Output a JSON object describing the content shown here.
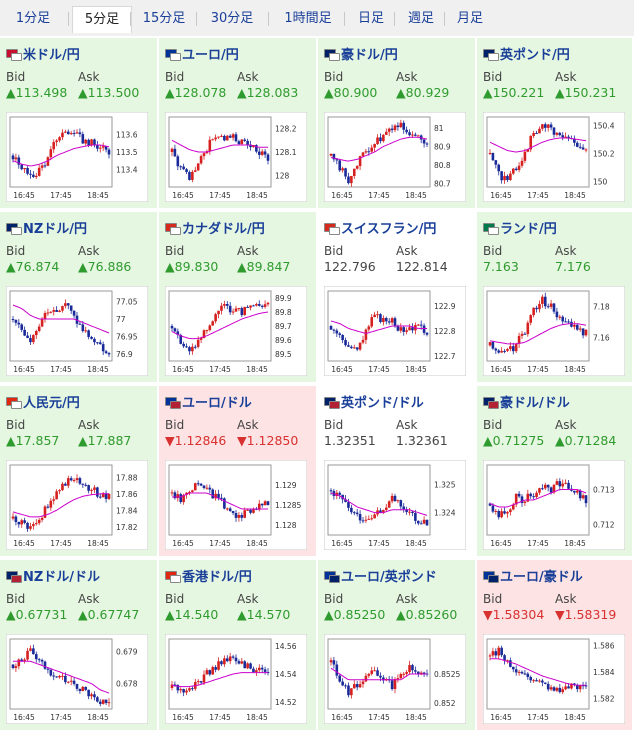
{
  "tabs": [
    {
      "label": "1分足",
      "active": false
    },
    {
      "label": "5分足",
      "active": true
    },
    {
      "label": "15分足",
      "active": false
    },
    {
      "label": "30分足",
      "active": false
    },
    {
      "label": "1時間足",
      "active": false
    },
    {
      "label": "日足",
      "active": false
    },
    {
      "label": "週足",
      "active": false
    },
    {
      "label": "月足",
      "active": false
    }
  ],
  "bid_label": "Bid",
  "ask_label": "Ask",
  "colors": {
    "up_bg": "#e6f7e1",
    "down_bg": "#fde3e3",
    "up_text": "#2f9b2f",
    "down_text": "#d93030",
    "candle_up": "#d62020",
    "candle_down": "#1a2a99",
    "ma": "#cc00cc"
  },
  "pairs": [
    {
      "name": "米ドル/円",
      "dir": "up",
      "bid": "▲113.498",
      "ask": "▲113.500",
      "flags": [
        "#c8102e",
        "#ffffff"
      ],
      "chart": {
        "ylim": [
          113.3,
          113.7
        ],
        "yticks": [
          "113.6",
          "113.5",
          "113.4"
        ],
        "ytickvals": [
          113.6,
          113.5,
          113.4
        ],
        "xticks": [
          "16:45",
          "17:45",
          "18:45"
        ],
        "trend": [
          113.48,
          113.42,
          113.35,
          113.4,
          113.46,
          113.58,
          113.62,
          113.6,
          113.57,
          113.55,
          113.52,
          113.5
        ],
        "ma": [
          113.45,
          113.43,
          113.42,
          113.43,
          113.45,
          113.48,
          113.5,
          113.52,
          113.53,
          113.54,
          113.54,
          113.53
        ]
      }
    },
    {
      "name": "ユーロ/円",
      "dir": "up",
      "bid": "▲128.078",
      "ask": "▲128.083",
      "flags": [
        "#003399",
        "#ffffff"
      ],
      "chart": {
        "ylim": [
          127.95,
          128.25
        ],
        "yticks": [
          "128.2",
          "128.1",
          "128"
        ],
        "ytickvals": [
          128.2,
          128.1,
          128.0
        ],
        "xticks": [
          "16:45",
          "17:45",
          "18:45"
        ],
        "trend": [
          128.1,
          128.03,
          127.98,
          128.05,
          128.12,
          128.17,
          128.15,
          128.16,
          128.14,
          128.12,
          128.1,
          128.08
        ],
        "ma": [
          128.15,
          128.13,
          128.11,
          128.1,
          128.1,
          128.11,
          128.12,
          128.13,
          128.13,
          128.13,
          128.12,
          128.12
        ]
      }
    },
    {
      "name": "豪ドル/円",
      "dir": "up",
      "bid": "▲80.900",
      "ask": "▲80.929",
      "flags": [
        "#012169",
        "#ffffff"
      ],
      "chart": {
        "ylim": [
          80.68,
          81.06
        ],
        "yticks": [
          "81",
          "80.9",
          "80.8",
          "80.7"
        ],
        "ytickvals": [
          81.0,
          80.9,
          80.8,
          80.7
        ],
        "xticks": [
          "16:45",
          "17:45",
          "18:45"
        ],
        "trend": [
          80.85,
          80.78,
          80.72,
          80.8,
          80.88,
          80.92,
          80.96,
          81.0,
          81.02,
          80.98,
          80.95,
          80.9
        ],
        "ma": [
          80.84,
          80.83,
          80.82,
          80.83,
          80.85,
          80.87,
          80.9,
          80.92,
          80.94,
          80.95,
          80.95,
          80.94
        ]
      }
    },
    {
      "name": "英ポンド/円",
      "dir": "up",
      "bid": "▲150.221",
      "ask": "▲150.231",
      "flags": [
        "#012169",
        "#ffffff"
      ],
      "chart": {
        "ylim": [
          149.96,
          150.46
        ],
        "yticks": [
          "150.4",
          "150.2",
          "150"
        ],
        "ytickvals": [
          150.4,
          150.2,
          150.0
        ],
        "xticks": [
          "16:45",
          "17:45",
          "18:45"
        ],
        "trend": [
          150.2,
          150.05,
          150.0,
          150.1,
          150.2,
          150.35,
          150.4,
          150.38,
          150.33,
          150.3,
          150.26,
          150.22
        ],
        "ma": [
          150.28,
          150.25,
          150.22,
          150.21,
          150.22,
          150.25,
          150.28,
          150.3,
          150.31,
          150.31,
          150.3,
          150.29
        ]
      }
    },
    {
      "name": "NZドル/円",
      "dir": "up",
      "bid": "▲76.874",
      "ask": "▲76.886",
      "flags": [
        "#012169",
        "#ffffff"
      ],
      "chart": {
        "ylim": [
          76.88,
          77.08
        ],
        "yticks": [
          "77.05",
          "77",
          "76.95",
          "76.9"
        ],
        "ytickvals": [
          77.05,
          77.0,
          76.95,
          76.9
        ],
        "xticks": [
          "16:45",
          "17:45",
          "18:45"
        ],
        "trend": [
          77.0,
          76.97,
          76.94,
          76.99,
          77.03,
          77.02,
          77.04,
          77.0,
          76.97,
          76.95,
          76.92,
          76.9
        ],
        "ma": [
          77.04,
          77.03,
          77.01,
          77.0,
          77.0,
          77.0,
          77.0,
          77.0,
          76.99,
          76.98,
          76.97,
          76.96
        ]
      }
    },
    {
      "name": "カナダドル/円",
      "dir": "up",
      "bid": "▲89.830",
      "ask": "▲89.847",
      "flags": [
        "#d52b1e",
        "#ffffff"
      ],
      "chart": {
        "ylim": [
          89.45,
          89.95
        ],
        "yticks": [
          "89.9",
          "89.8",
          "89.7",
          "89.6",
          "89.5"
        ],
        "ytickvals": [
          89.9,
          89.8,
          89.7,
          89.6,
          89.5
        ],
        "xticks": [
          "16:45",
          "17:45",
          "18:45"
        ],
        "trend": [
          89.7,
          89.6,
          89.5,
          89.58,
          89.68,
          89.78,
          89.84,
          89.82,
          89.8,
          89.83,
          89.85,
          89.88
        ],
        "ma": [
          89.66,
          89.63,
          89.61,
          89.61,
          89.63,
          89.66,
          89.69,
          89.72,
          89.75,
          89.77,
          89.79,
          89.8
        ]
      }
    },
    {
      "name": "スイスフラン/円",
      "dir": "flat",
      "bid": "122.796",
      "ask": "122.814",
      "flags": [
        "#d52b1e",
        "#ffffff"
      ],
      "chart": {
        "ylim": [
          122.68,
          122.96
        ],
        "yticks": [
          "122.9",
          "122.8",
          "122.7"
        ],
        "ytickvals": [
          122.9,
          122.8,
          122.7
        ],
        "xticks": [
          "16:45",
          "17:45",
          "18:45"
        ],
        "trend": [
          122.82,
          122.78,
          122.74,
          122.72,
          122.8,
          122.86,
          122.84,
          122.85,
          122.8,
          122.82,
          122.81,
          122.8
        ],
        "ma": [
          122.84,
          122.83,
          122.81,
          122.8,
          122.79,
          122.8,
          122.81,
          122.82,
          122.82,
          122.82,
          122.81,
          122.81
        ]
      }
    },
    {
      "name": "ランド/円",
      "dir": "up",
      "bid": "7.163",
      "ask": "7.176",
      "flags": [
        "#007a4d",
        "#ffffff"
      ],
      "chart": {
        "ylim": [
          7.145,
          7.19
        ],
        "yticks": [
          "7.18",
          "7.16"
        ],
        "ytickvals": [
          7.18,
          7.16
        ],
        "xticks": [
          "16:45",
          "17:45",
          "18:45"
        ],
        "trend": [
          7.155,
          7.152,
          7.15,
          7.156,
          7.165,
          7.178,
          7.184,
          7.18,
          7.172,
          7.168,
          7.165,
          7.163
        ],
        "ma": [
          7.158,
          7.157,
          7.156,
          7.156,
          7.157,
          7.16,
          7.163,
          7.166,
          7.168,
          7.169,
          7.169,
          7.168
        ]
      }
    },
    {
      "name": "人民元/円",
      "dir": "up",
      "bid": "▲17.857",
      "ask": "▲17.887",
      "flags": [
        "#de2910",
        "#ffffff"
      ],
      "chart": {
        "ylim": [
          17.81,
          17.895
        ],
        "yticks": [
          "17.88",
          "17.86",
          "17.84",
          "17.82"
        ],
        "ytickvals": [
          17.88,
          17.86,
          17.84,
          17.82
        ],
        "xticks": [
          "16:45",
          "17:45",
          "18:45"
        ],
        "trend": [
          17.83,
          17.825,
          17.82,
          17.83,
          17.845,
          17.86,
          17.875,
          17.88,
          17.87,
          17.865,
          17.86,
          17.858
        ],
        "ma": [
          17.838,
          17.835,
          17.832,
          17.832,
          17.835,
          17.84,
          17.847,
          17.853,
          17.857,
          17.859,
          17.86,
          17.86
        ]
      }
    },
    {
      "name": "ユーロ/ドル",
      "dir": "down",
      "bid": "▼1.12846",
      "ask": "▼1.12850",
      "flags": [
        "#003399",
        "#b22234"
      ],
      "chart": {
        "ylim": [
          1.12775,
          1.1295
        ],
        "yticks": [
          "1.129",
          "1.1285",
          "1.128"
        ],
        "ytickvals": [
          1.129,
          1.1285,
          1.128
        ],
        "xticks": [
          "16:45",
          "17:45",
          "18:45"
        ],
        "trend": [
          1.1288,
          1.1286,
          1.1289,
          1.1291,
          1.1289,
          1.1287,
          1.1285,
          1.1283,
          1.1282,
          1.1284,
          1.1285,
          1.1285
        ],
        "ma": [
          1.1287,
          1.1287,
          1.1288,
          1.1288,
          1.1288,
          1.1287,
          1.1286,
          1.1285,
          1.1284,
          1.1284,
          1.1284,
          1.1284
        ]
      }
    },
    {
      "name": "英ポンド/ドル",
      "dir": "flat",
      "bid": "1.32351",
      "ask": "1.32361",
      "flags": [
        "#012169",
        "#b22234"
      ],
      "chart": {
        "ylim": [
          1.3232,
          1.3257
        ],
        "yticks": [
          "1.325",
          "1.324"
        ],
        "ytickvals": [
          1.325,
          1.324
        ],
        "xticks": [
          "16:45",
          "17:45",
          "18:45"
        ],
        "trend": [
          1.3248,
          1.3245,
          1.3241,
          1.3238,
          1.3236,
          1.3238,
          1.3242,
          1.3245,
          1.3243,
          1.324,
          1.3237,
          1.3236
        ],
        "ma": [
          1.3247,
          1.3246,
          1.3244,
          1.3242,
          1.3241,
          1.324,
          1.324,
          1.3241,
          1.3241,
          1.3241,
          1.324,
          1.3239
        ]
      }
    },
    {
      "name": "豪ドル/ドル",
      "dir": "up",
      "bid": "▲0.71275",
      "ask": "▲0.71284",
      "flags": [
        "#012169",
        "#b22234"
      ],
      "chart": {
        "ylim": [
          0.7117,
          0.7137
        ],
        "yticks": [
          "0.713",
          "0.712"
        ],
        "ytickvals": [
          0.713,
          0.712
        ],
        "xticks": [
          "16:45",
          "17:45",
          "18:45"
        ],
        "trend": [
          0.7126,
          0.7122,
          0.7124,
          0.7128,
          0.7127,
          0.7129,
          0.7131,
          0.713,
          0.7132,
          0.7131,
          0.7129,
          0.7127
        ],
        "ma": [
          0.7126,
          0.7125,
          0.7125,
          0.7126,
          0.7127,
          0.7127,
          0.7128,
          0.7129,
          0.713,
          0.713,
          0.713,
          0.7129
        ]
      }
    },
    {
      "name": "NZドル/ドル",
      "dir": "up",
      "bid": "▲0.67731",
      "ask": "▲0.67747",
      "flags": [
        "#012169",
        "#b22234"
      ],
      "chart": {
        "ylim": [
          0.6772,
          0.6794
        ],
        "yticks": [
          "0.679",
          "0.678"
        ],
        "ytickvals": [
          0.679,
          0.678
        ],
        "xticks": [
          "16:45",
          "17:45",
          "18:45"
        ],
        "trend": [
          0.6786,
          0.6788,
          0.679,
          0.6787,
          0.6784,
          0.6783,
          0.6781,
          0.678,
          0.6778,
          0.6776,
          0.6774,
          0.6773
        ],
        "ma": [
          0.6787,
          0.6787,
          0.6787,
          0.6786,
          0.6785,
          0.6784,
          0.6783,
          0.6782,
          0.6781,
          0.678,
          0.6778,
          0.6777
        ]
      }
    },
    {
      "name": "香港ドル/円",
      "dir": "up",
      "bid": "▲14.540",
      "ask": "▲14.570",
      "flags": [
        "#de2910",
        "#ffffff"
      ],
      "chart": {
        "ylim": [
          14.515,
          14.565
        ],
        "yticks": [
          "14.56",
          "14.54",
          "14.52"
        ],
        "ytickvals": [
          14.56,
          14.54,
          14.52
        ],
        "xticks": [
          "16:45",
          "17:45",
          "18:45"
        ],
        "trend": [
          14.53,
          14.528,
          14.53,
          14.535,
          14.54,
          14.545,
          14.552,
          14.55,
          14.548,
          14.545,
          14.542,
          14.54
        ],
        "ma": [
          14.532,
          14.531,
          14.531,
          14.532,
          14.534,
          14.536,
          14.538,
          14.54,
          14.541,
          14.541,
          14.541,
          14.541
        ]
      }
    },
    {
      "name": "ユーロ/英ポンド",
      "dir": "up",
      "bid": "▲0.85250",
      "ask": "▲0.85260",
      "flags": [
        "#003399",
        "#012169"
      ],
      "chart": {
        "ylim": [
          0.8519,
          0.8531
        ],
        "yticks": [
          "0.8525",
          "0.852"
        ],
        "ytickvals": [
          0.8525,
          0.852
        ],
        "xticks": [
          "16:45",
          "17:45",
          "18:45"
        ],
        "trend": [
          0.8527,
          0.8524,
          0.8522,
          0.8523,
          0.8525,
          0.8526,
          0.8524,
          0.8523,
          0.8525,
          0.8526,
          0.8525,
          0.8525
        ],
        "ma": [
          0.8526,
          0.8525,
          0.8524,
          0.8524,
          0.8524,
          0.8524,
          0.8524,
          0.8524,
          0.8524,
          0.8525,
          0.8525,
          0.8525
        ]
      }
    },
    {
      "name": "ユーロ/豪ドル",
      "dir": "down",
      "bid": "▼1.58304",
      "ask": "▼1.58319",
      "flags": [
        "#003399",
        "#012169"
      ],
      "chart": {
        "ylim": [
          1.5812,
          1.5865
        ],
        "yticks": [
          "1.586",
          "1.584",
          "1.582"
        ],
        "ytickvals": [
          1.586,
          1.584,
          1.582
        ],
        "xticks": [
          "16:45",
          "17:45",
          "18:45"
        ],
        "trend": [
          1.5852,
          1.5856,
          1.5848,
          1.5842,
          1.5838,
          1.5835,
          1.5832,
          1.5829,
          1.5826,
          1.5828,
          1.583,
          1.583
        ],
        "ma": [
          1.585,
          1.585,
          1.5848,
          1.5846,
          1.5843,
          1.584,
          1.5837,
          1.5835,
          1.5833,
          1.5831,
          1.583,
          1.583
        ]
      }
    }
  ]
}
